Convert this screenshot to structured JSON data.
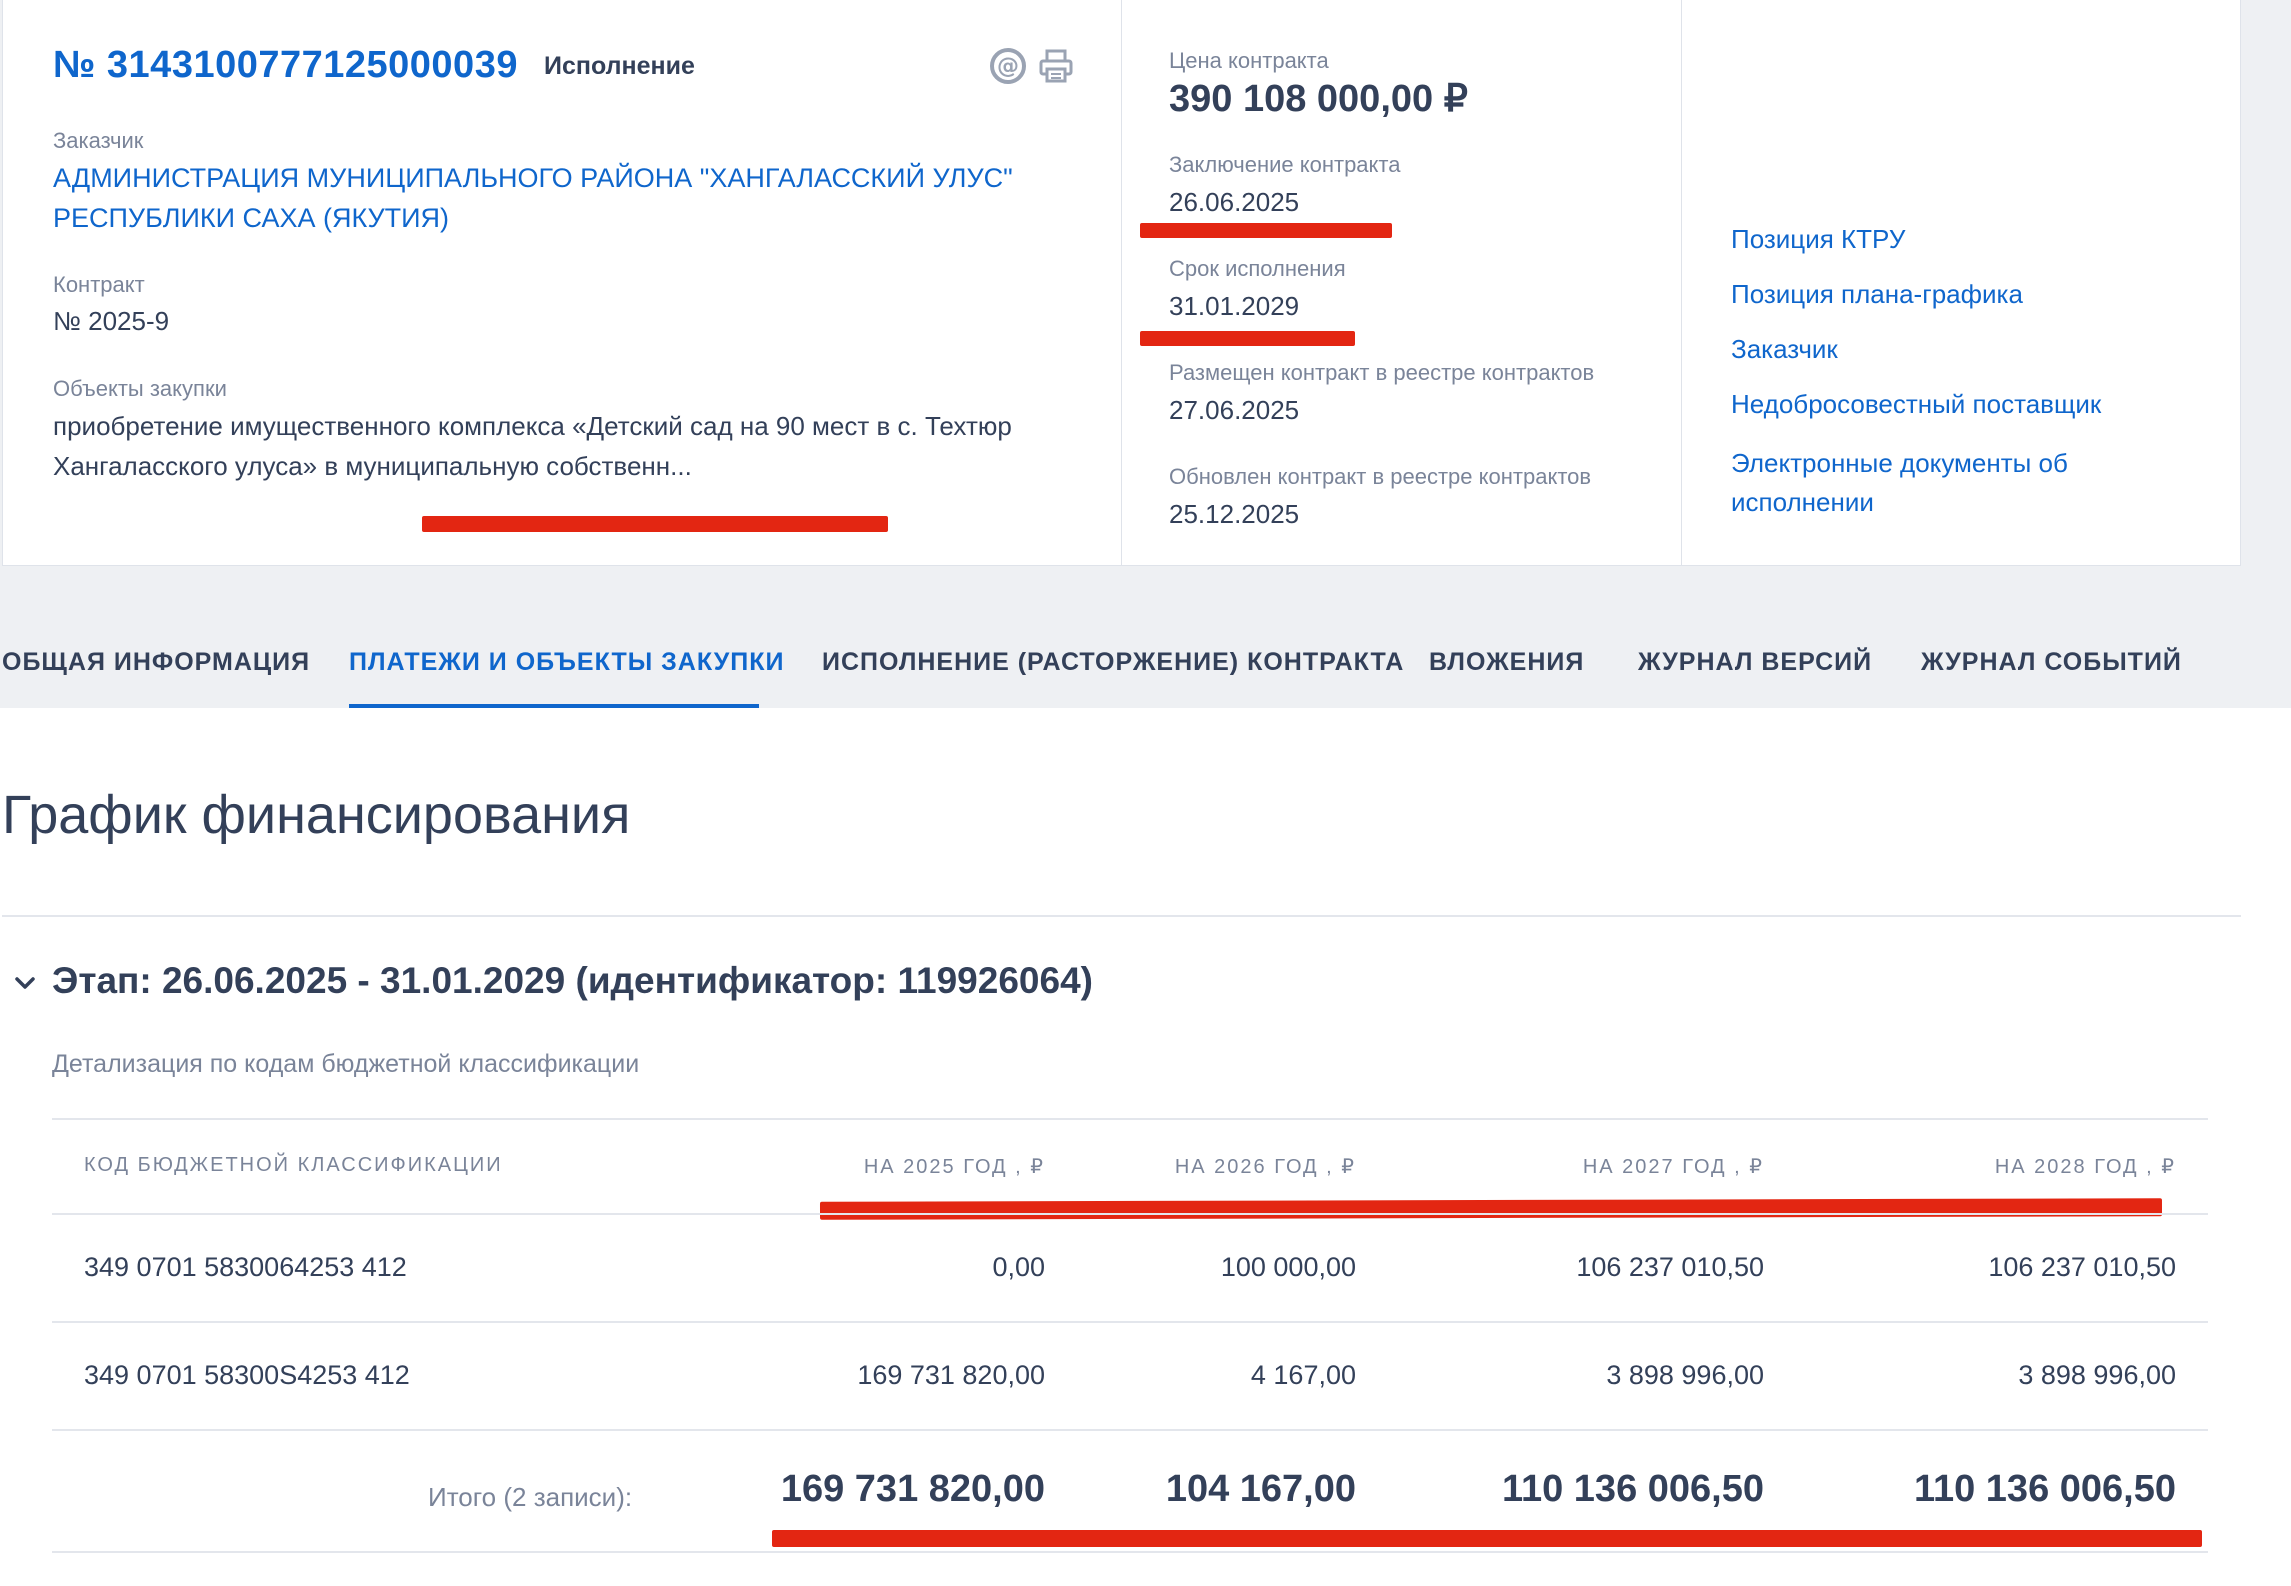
{
  "header": {
    "contract_number": "№ 3143100777125000039",
    "status": "Исполнение",
    "customer_label": "Заказчик",
    "customer_name": "АДМИНИСТРАЦИЯ МУНИЦИПАЛЬНОГО РАЙОНА \"ХАНГАЛАССКИЙ УЛУС\" РЕСПУБЛИКИ САХА (ЯКУТИЯ)",
    "contract_label": "Контракт",
    "contract_value": "№ 2025-9",
    "objects_label": "Объекты закупки",
    "objects_value": "приобретение имущественного комплекса «Детский сад на 90 мест в с. Техтюр Хангаласского улуса» в муниципальную собственн..."
  },
  "icons": {
    "email": "email-at-icon",
    "print": "printer-icon",
    "chevron": "chevron-down-icon"
  },
  "details": {
    "price_label": "Цена контракта",
    "price_value": "390 108 000,00 ₽",
    "conclusion_label": "Заключение контракта",
    "conclusion_value": "26.06.2025",
    "term_label": "Срок исполнения",
    "term_value": "31.01.2029",
    "placed_label": "Размещен контракт в реестре контрактов",
    "placed_value": "27.06.2025",
    "updated_label": "Обновлен контракт в реестре контрактов",
    "updated_value": "25.12.2025"
  },
  "links": [
    "Позиция КТРУ",
    "Позиция плана-графика",
    "Заказчик",
    "Недобросовестный поставщик",
    "Электронные документы об исполнении"
  ],
  "tabs": [
    "ОБЩАЯ ИНФОРМАЦИЯ",
    "ПЛАТЕЖИ И ОБЪЕКТЫ ЗАКУПКИ",
    "ИСПОЛНЕНИЕ (РАСТОРЖЕНИЕ) КОНТРАКТА",
    "ВЛОЖЕНИЯ",
    "ЖУРНАЛ ВЕРСИЙ",
    "ЖУРНАЛ СОБЫТИЙ"
  ],
  "section_title": "График финансирования",
  "stage_title": "Этап: 26.06.2025 - 31.01.2029 (идентификатор: 119926064)",
  "detail_label": "Детализация по кодам бюджетной классификации",
  "table": {
    "headers": [
      "КОД БЮДЖЕТНОЙ КЛАССИФИКАЦИИ",
      "НА 2025 ГОД , ₽",
      "НА 2026 ГОД , ₽",
      "НА 2027 ГОД , ₽",
      "НА 2028 ГОД , ₽"
    ],
    "rows": [
      [
        "349 0701 5830064253 412",
        "0,00",
        "100 000,00",
        "106 237 010,50",
        "106 237 010,50"
      ],
      [
        "349 0701 58300S4253 412",
        "169 731 820,00",
        "4 167,00",
        "3 898 996,00",
        "3 898 996,00"
      ]
    ],
    "total_label": "Итого (2 записи):",
    "totals": [
      "169 731 820,00",
      "104 167,00",
      "110 136 006,50",
      "110 136 006,50"
    ]
  },
  "colors": {
    "link": "#0f66cc",
    "text": "#334059",
    "muted": "#7a8499",
    "highlight": "#e32612",
    "band": "#eef0f3"
  }
}
